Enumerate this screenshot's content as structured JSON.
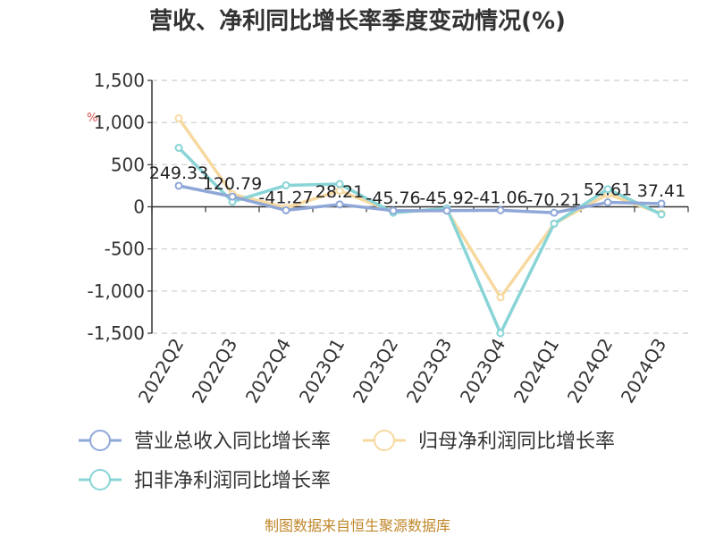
{
  "chart_data": {
    "type": "line",
    "title": "营收、净利同比增长率季度变动情况(%)",
    "unit_mark": "%",
    "categories": [
      "2022Q2",
      "2022Q3",
      "2022Q4",
      "2023Q1",
      "2023Q2",
      "2023Q3",
      "2023Q4",
      "2024Q1",
      "2024Q2",
      "2024Q3"
    ],
    "ylim": [
      -1500,
      1500
    ],
    "yticks": [
      1500,
      1000,
      500,
      0,
      -500,
      -1000,
      -1500
    ],
    "ytick_labels": [
      "1,500",
      "1,000",
      "500",
      "0",
      "-500",
      "-1,000",
      "-1,500"
    ],
    "grid": true,
    "legend_position": "bottom",
    "series": [
      {
        "name": "营业总收入同比增长率",
        "color": "#8fa8d8",
        "values": [
          249.33,
          120.79,
          -41.27,
          28.21,
          -45.76,
          -45.92,
          -41.06,
          -70.21,
          52.61,
          37.41
        ],
        "labels": [
          "249.33",
          "120.79",
          "-41.27",
          "28.21",
          "-45.76",
          "-45.92",
          "-41.06",
          "-70.21",
          "52.61",
          "37.41"
        ]
      },
      {
        "name": "归母净利润同比增长率",
        "color": "#f7d9a0",
        "values": [
          1050,
          150,
          -10,
          190,
          -60,
          -40,
          -1075,
          -200,
          150,
          -80
        ],
        "labels": []
      },
      {
        "name": "扣非净利润同比增长率",
        "color": "#88d4d6",
        "values": [
          700,
          60,
          255,
          270,
          -70,
          -20,
          -1500,
          -200,
          210,
          -90
        ],
        "labels": []
      }
    ],
    "source": "制图数据来自恒生聚源数据库"
  }
}
